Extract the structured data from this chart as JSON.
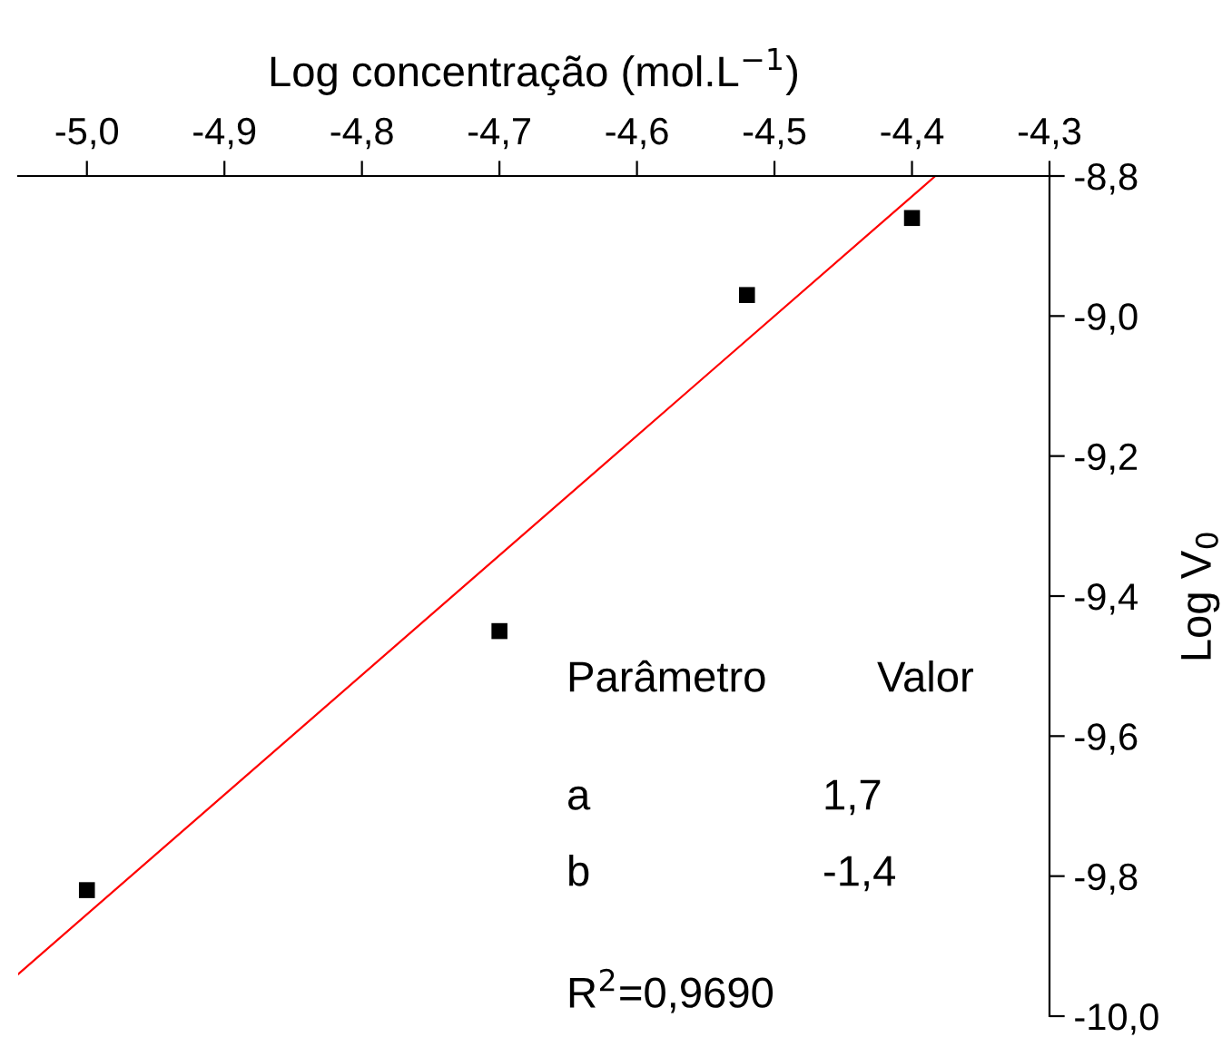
{
  "chart_data": {
    "type": "scatter",
    "xlabel": "Log concentração (mol.L$^{−1}$)",
    "ylabel": "Log V$_{0}$",
    "x": [
      -5.0,
      -4.7,
      -4.52,
      -4.4
    ],
    "series": [
      {
        "color": "#000000",
        "marker": "square",
        "values": [
          -9.82,
          -9.45,
          -8.97,
          -8.86
        ]
      },
      {
        "type": "line",
        "color": "#ff0000",
        "x": [
          -5.05,
          -4.383
        ],
        "values": [
          -9.94,
          -8.8
        ]
      }
    ],
    "xlim": [
      -5.05,
      -4.3
    ],
    "ylim": [
      -10.0,
      -8.8
    ],
    "xticks": [
      {
        "value": -5.0,
        "label": "-5,0"
      },
      {
        "value": -4.9,
        "label": "-4,9"
      },
      {
        "value": -4.8,
        "label": "-4,8"
      },
      {
        "value": -4.7,
        "label": "-4,7"
      },
      {
        "value": -4.6,
        "label": "-4,6"
      },
      {
        "value": -4.5,
        "label": "-4,5"
      },
      {
        "value": -4.4,
        "label": "-4,4"
      },
      {
        "value": -4.3,
        "label": "-4,3"
      }
    ],
    "yticks": [
      {
        "value": -10.0,
        "label": "-10,0"
      },
      {
        "value": -9.8,
        "label": "-9,8"
      },
      {
        "value": -9.6,
        "label": "-9,6"
      },
      {
        "value": -9.4,
        "label": "-9,4"
      },
      {
        "value": -9.2,
        "label": "-9,2"
      },
      {
        "value": -9.0,
        "label": "-9,0"
      },
      {
        "value": -8.8,
        "label": "-8,8"
      }
    ],
    "annotations": [
      "Parâmetro",
      "Valor",
      "a",
      "1,7",
      "b",
      "-1,4",
      "R$^{2}$=0,9690"
    ],
    "grid": false,
    "legend": false
  }
}
